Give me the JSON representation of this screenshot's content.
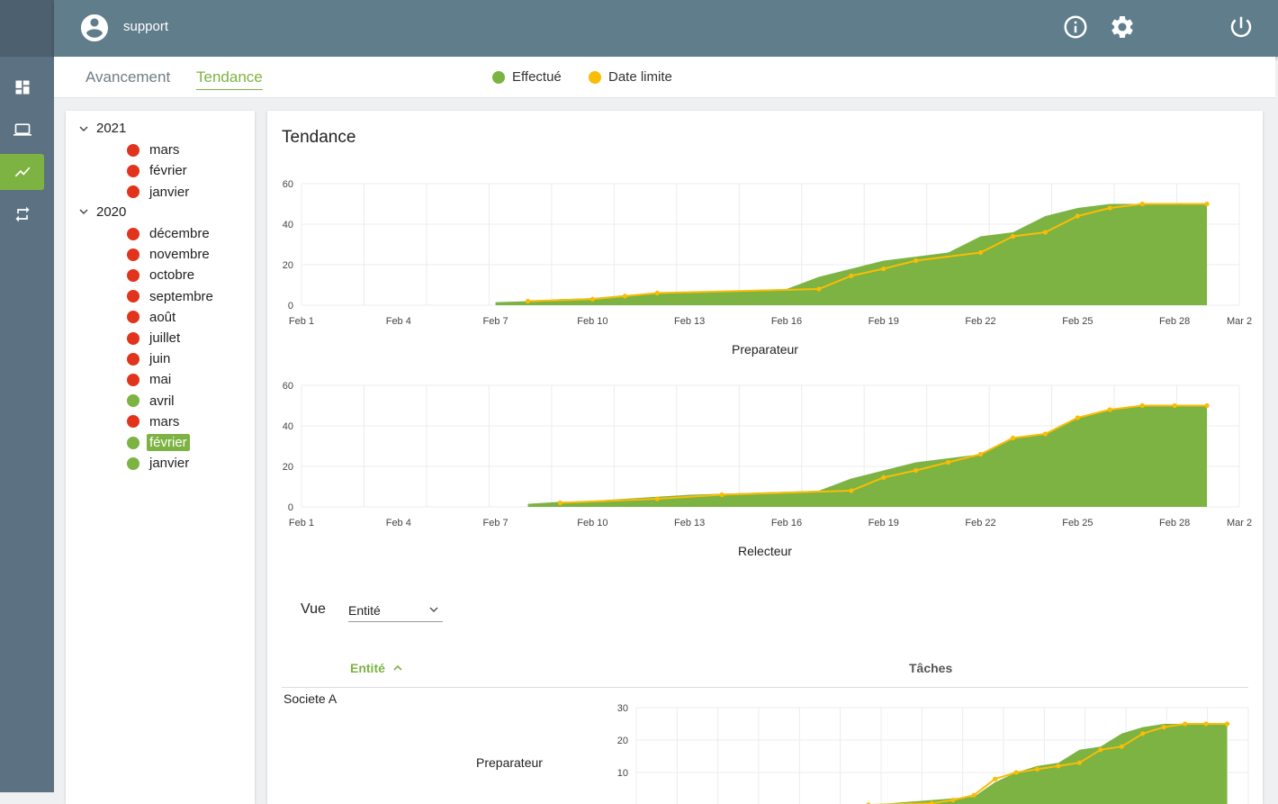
{
  "header": {
    "username": "support",
    "icons": [
      "account-icon",
      "info-icon",
      "settings-icon",
      "power-icon"
    ]
  },
  "sidebar": {
    "items": [
      {
        "name": "dashboard-icon",
        "active": false
      },
      {
        "name": "laptop-icon",
        "active": false
      },
      {
        "name": "trend-icon",
        "active": true
      },
      {
        "name": "repeat-icon",
        "active": false
      }
    ]
  },
  "tabs": [
    {
      "label": "Avancement",
      "active": false
    },
    {
      "label": "Tendance",
      "active": true
    }
  ],
  "legend": [
    {
      "label": "Effectué",
      "color": "#7cb342"
    },
    {
      "label": "Date limite",
      "color": "#fbbc05"
    }
  ],
  "tree": {
    "years": [
      {
        "label": "2021",
        "months": [
          {
            "label": "mars",
            "status": "red"
          },
          {
            "label": "février",
            "status": "red"
          },
          {
            "label": "janvier",
            "status": "red"
          }
        ]
      },
      {
        "label": "2020",
        "months": [
          {
            "label": "décembre",
            "status": "red"
          },
          {
            "label": "novembre",
            "status": "red"
          },
          {
            "label": "octobre",
            "status": "red"
          },
          {
            "label": "septembre",
            "status": "red"
          },
          {
            "label": "août",
            "status": "red"
          },
          {
            "label": "juillet",
            "status": "red"
          },
          {
            "label": "juin",
            "status": "red"
          },
          {
            "label": "mai",
            "status": "red"
          },
          {
            "label": "avril",
            "status": "green"
          },
          {
            "label": "mars",
            "status": "red"
          },
          {
            "label": "février",
            "status": "green",
            "selected": true
          },
          {
            "label": "janvier",
            "status": "green"
          }
        ]
      }
    ],
    "colors": {
      "red": "#e2341d",
      "green": "#7cb342"
    }
  },
  "main": {
    "title": "Tendance",
    "vue_label": "Vue",
    "vue_value": "Entité",
    "table": {
      "col_entite": "Entité",
      "col_taches": "Tâches",
      "rows": [
        {
          "entite": "Societe A",
          "role": "Preparateur"
        }
      ]
    }
  },
  "chart_data": [
    {
      "type": "area",
      "title": "",
      "caption": "Preparateur",
      "xlim": [
        1,
        30
      ],
      "xticks": [
        1,
        4,
        7,
        10,
        13,
        16,
        19,
        22,
        25,
        28,
        30
      ],
      "xticklabels": [
        "Feb 1",
        "Feb 4",
        "Feb 7",
        "Feb 10",
        "Feb 13",
        "Feb 16",
        "Feb 19",
        "Feb 22",
        "Feb 25",
        "Feb 28",
        "Mar 2"
      ],
      "ylim": [
        0,
        60
      ],
      "yticks": [
        0,
        20,
        40,
        60
      ],
      "grid": true,
      "series": [
        {
          "name": "Effectué",
          "kind": "area",
          "color": "#7cb342",
          "x": [
            7,
            8,
            9,
            10,
            11,
            12,
            13,
            14,
            15,
            16,
            17,
            18,
            19,
            20,
            21,
            22,
            23,
            24,
            25,
            26,
            27,
            28,
            29
          ],
          "y": [
            1.5,
            2,
            3,
            3.5,
            5,
            6,
            6.5,
            7,
            7.5,
            8,
            14,
            18,
            22,
            24,
            26,
            34,
            36,
            44,
            48,
            50,
            50,
            50,
            50
          ]
        },
        {
          "name": "Date limite",
          "kind": "line",
          "color": "#fbbc05",
          "x": [
            8,
            10,
            11,
            12,
            17,
            18,
            19,
            20,
            22,
            23,
            24,
            25,
            26,
            27,
            29
          ],
          "y": [
            2,
            3,
            4.5,
            6,
            8,
            14.5,
            18,
            22,
            26,
            34,
            36,
            44,
            48,
            50,
            50
          ]
        }
      ]
    },
    {
      "type": "area",
      "title": "",
      "caption": "Relecteur",
      "xlim": [
        1,
        30
      ],
      "xticks": [
        1,
        4,
        7,
        10,
        13,
        16,
        19,
        22,
        25,
        28,
        30
      ],
      "xticklabels": [
        "Feb 1",
        "Feb 4",
        "Feb 7",
        "Feb 10",
        "Feb 13",
        "Feb 16",
        "Feb 19",
        "Feb 22",
        "Feb 25",
        "Feb 28",
        "Mar 2"
      ],
      "ylim": [
        0,
        60
      ],
      "yticks": [
        0,
        20,
        40,
        60
      ],
      "grid": true,
      "series": [
        {
          "name": "Effectué",
          "kind": "area",
          "color": "#7cb342",
          "x": [
            8,
            9,
            10,
            11,
            12,
            13,
            14,
            15,
            16,
            17,
            18,
            19,
            20,
            21,
            22,
            23,
            24,
            25,
            26,
            27,
            28,
            29
          ],
          "y": [
            1.5,
            2.5,
            3,
            4,
            5,
            6,
            6.5,
            7,
            7.5,
            8,
            14,
            18,
            22,
            24,
            26,
            34,
            36,
            44,
            48,
            50,
            50,
            50
          ]
        },
        {
          "name": "Date limite",
          "kind": "line",
          "color": "#fbbc05",
          "x": [
            9,
            12,
            14,
            18,
            19,
            20,
            21,
            22,
            23,
            24,
            25,
            26,
            27,
            28,
            29
          ],
          "y": [
            2,
            4,
            6,
            8,
            14.5,
            18,
            22,
            26,
            34,
            36,
            44,
            48,
            50,
            50,
            50
          ]
        }
      ]
    },
    {
      "type": "area",
      "title": "",
      "caption": "",
      "xlim": [
        1,
        30
      ],
      "ylim": [
        0,
        30
      ],
      "yticks": [
        10,
        20,
        30
      ],
      "grid": true,
      "series": [
        {
          "name": "Effectué",
          "kind": "area",
          "color": "#7cb342",
          "x": [
            12,
            13,
            14,
            15,
            16,
            17,
            18,
            19,
            20,
            21,
            22,
            23,
            24,
            25,
            26,
            27,
            28,
            29
          ],
          "y": [
            0,
            0.5,
            1,
            1.5,
            2,
            2.5,
            7,
            10,
            12,
            13,
            17,
            18,
            22,
            24,
            25,
            25,
            25,
            25
          ]
        },
        {
          "name": "Date limite",
          "kind": "line",
          "color": "#fbbc05",
          "x": [
            12,
            15,
            16,
            17,
            18,
            19,
            20,
            21,
            22,
            23,
            24,
            25,
            26,
            27,
            28,
            29
          ],
          "y": [
            0,
            0.5,
            1.5,
            3,
            8,
            10,
            11,
            12,
            13,
            17,
            18,
            22,
            24,
            25,
            25,
            25
          ]
        }
      ]
    }
  ]
}
